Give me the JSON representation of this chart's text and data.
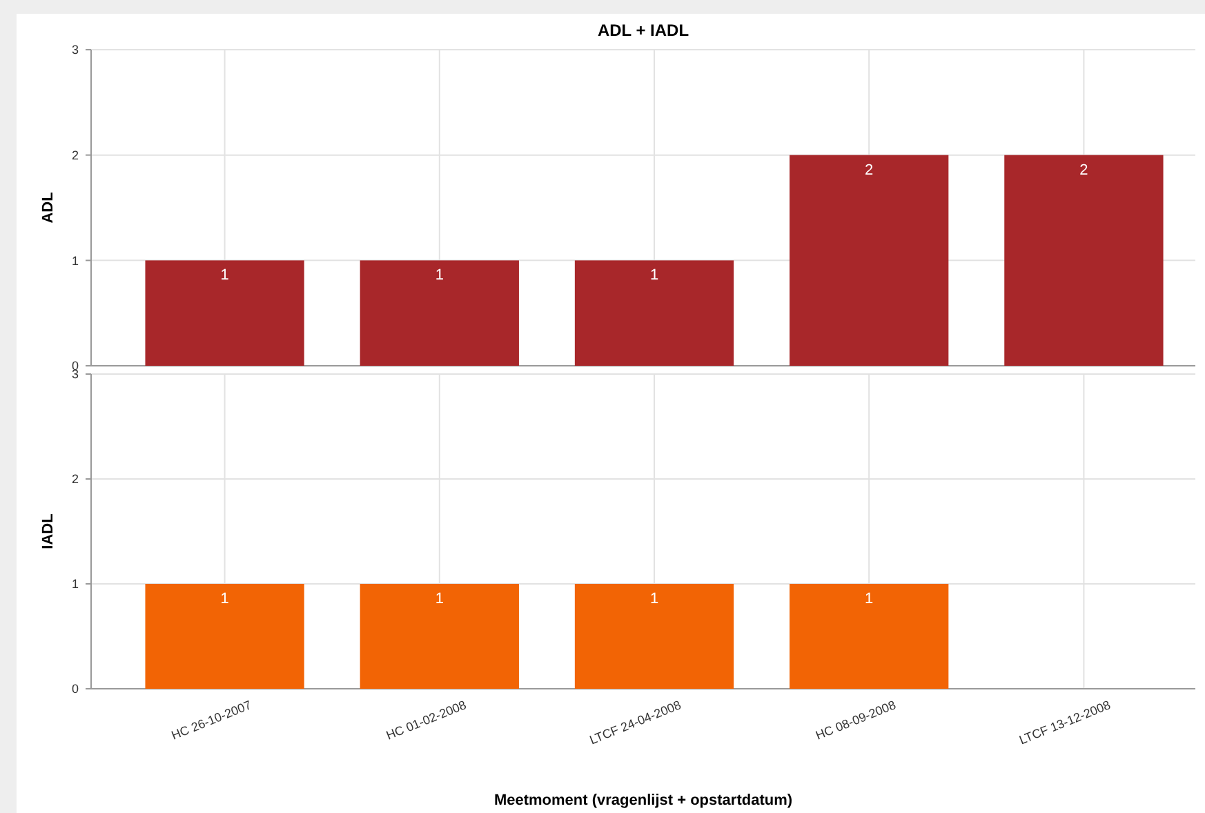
{
  "chart_data": [
    {
      "type": "bar",
      "title": "ADL + IADL",
      "ylabel": "ADL",
      "categories": [
        null,
        null,
        null,
        null,
        null
      ],
      "series": [
        {
          "color": "#a8272a",
          "values": [
            1,
            1,
            1,
            2,
            2
          ]
        }
      ],
      "ylim": [
        0,
        3
      ],
      "yticks": [
        0,
        1,
        2,
        3
      ],
      "grid": true,
      "data_labels": true,
      "tick_labels": "y"
    },
    {
      "type": "bar",
      "ylabel": "IADL",
      "xlabel": "Meetmoment (vragenlijst + opstartdatum)",
      "categories": [
        "HC 26-10-2007",
        "HC 01-02-2008",
        "LTCF 24-04-2008",
        "HC 08-09-2008",
        "LTCF 13-12-2008"
      ],
      "series": [
        {
          "color": "#f26405",
          "values": [
            1,
            1,
            1,
            1,
            null
          ]
        }
      ],
      "ylim": [
        0,
        3
      ],
      "yticks": [
        0,
        1,
        2,
        3
      ],
      "grid": true,
      "data_labels": true
    }
  ]
}
